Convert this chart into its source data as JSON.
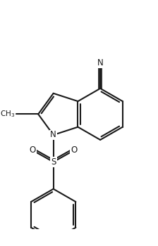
{
  "bg_color": "#ffffff",
  "line_color": "#1a1a1a",
  "lw": 1.5,
  "figsize": [
    2.24,
    3.5
  ],
  "dpi": 100,
  "xlim": [
    -2.5,
    5.5
  ],
  "ylim": [
    -6.5,
    5.5
  ]
}
